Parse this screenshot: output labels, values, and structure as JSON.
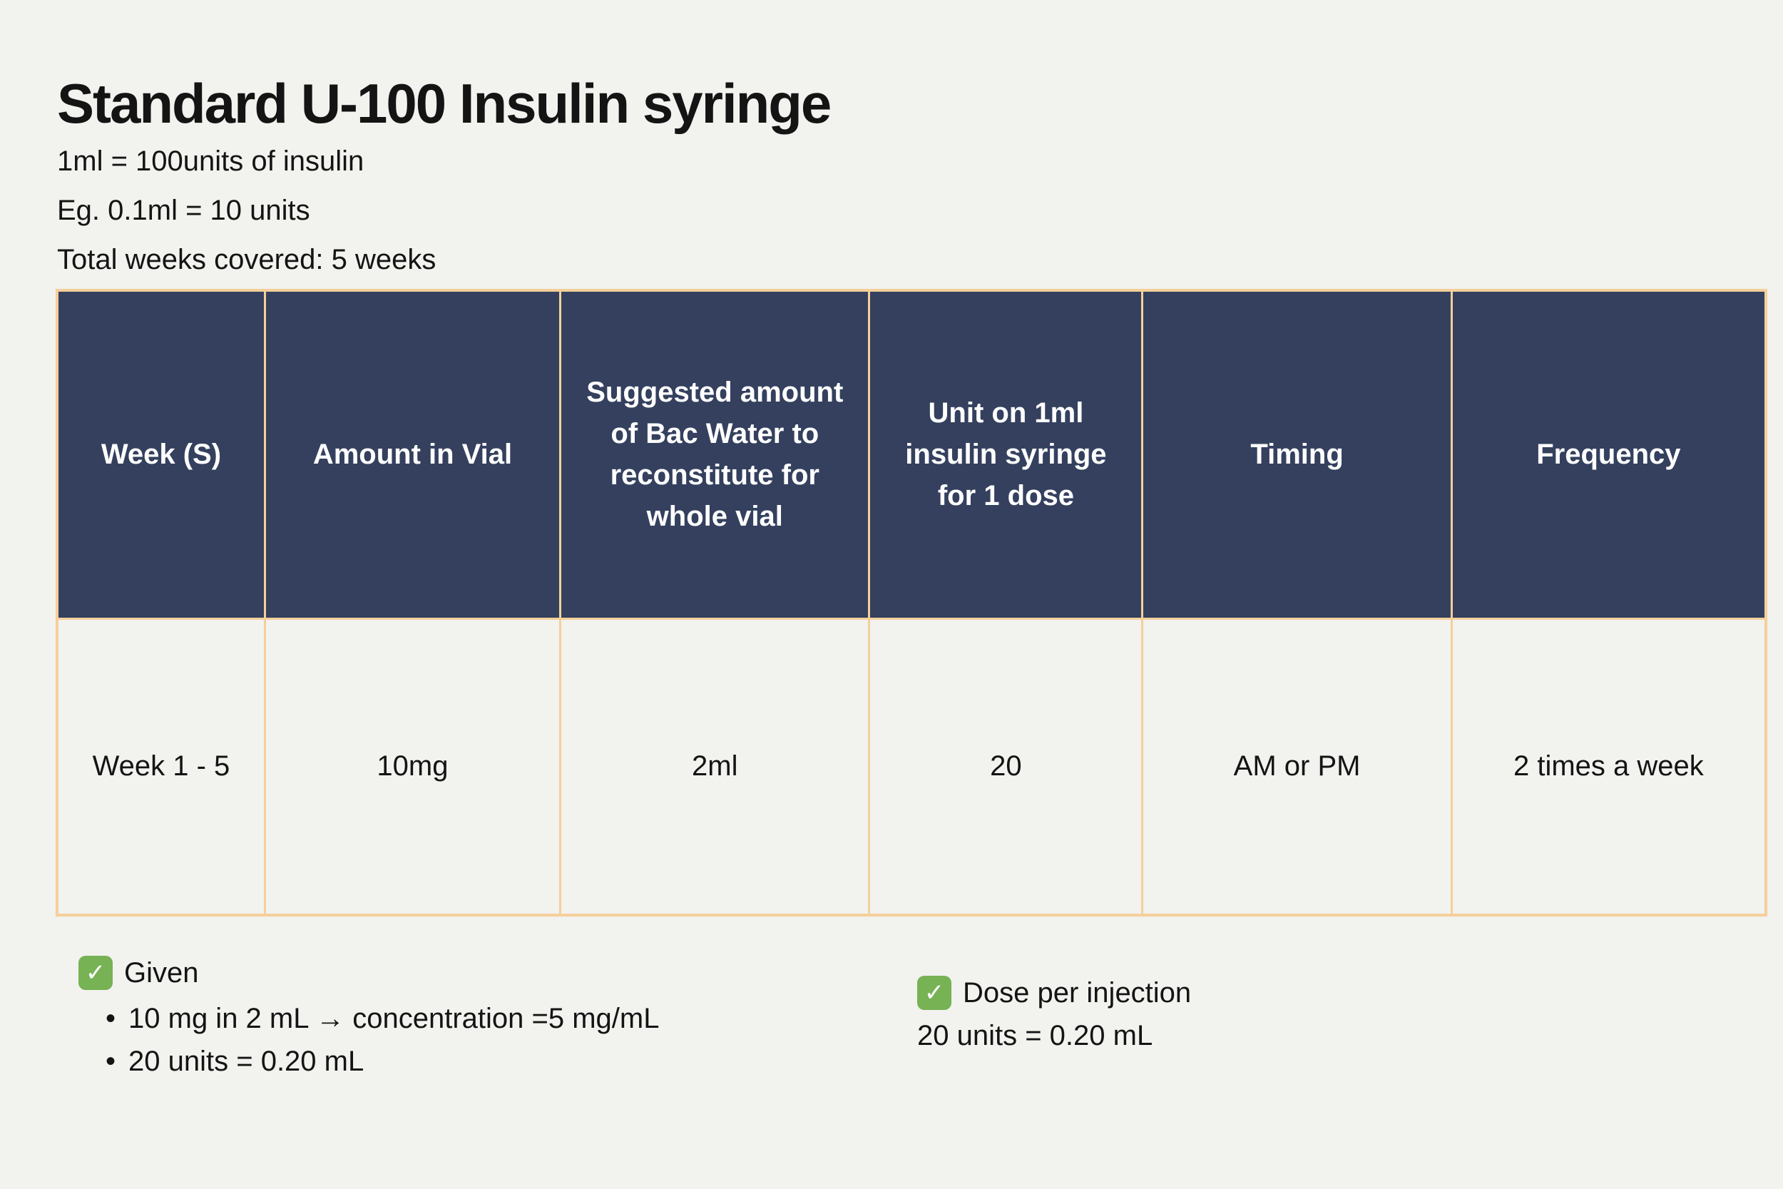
{
  "header": {
    "title": "Standard U-100 Insulin syringe",
    "subtitle_lines": [
      "1ml = 100units of insulin",
      "Eg. 0.1ml = 10 units",
      "Total weeks covered: 5 weeks"
    ]
  },
  "table": {
    "columns": [
      "Week (S)",
      "Amount in Vial",
      "Suggested amount of Bac Water to reconstitute for whole vial",
      "Unit on 1ml insulin syringe for 1 dose",
      "Timing",
      "Frequency"
    ],
    "rows": [
      {
        "week": "Week 1 - 5",
        "amount_in_vial": "10mg",
        "bac_water": "2ml",
        "units_per_dose": "20",
        "timing": "AM or PM",
        "frequency": "2 times a week"
      }
    ]
  },
  "notes": {
    "given": {
      "icon": "✓",
      "label": "Given",
      "bullets": [
        "10 mg in 2 mL → concentration =5 mg/mL",
        "20 units = 0.20 mL"
      ]
    },
    "dose_per_injection": {
      "icon": "✓",
      "label": "Dose per injection",
      "value": "20 units = 0.20 mL"
    }
  },
  "colors": {
    "bg": "#f2f2ef",
    "header-bg": "#34405e",
    "header-text": "#ffffff",
    "border": "#f4d09a",
    "text": "#141414",
    "check-green": "#77b255"
  }
}
